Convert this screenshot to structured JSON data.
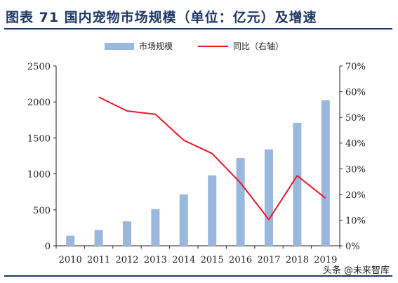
{
  "header": {
    "title": "图表 71  国内宠物市场规模（单位：亿元）及增速"
  },
  "footer": {
    "watermark": "头条 @未来智库"
  },
  "colors": {
    "bar": "#9ab7dd",
    "line": "#e8192c",
    "rule": "#1f3864"
  },
  "chart_data": {
    "type": "bar",
    "categories": [
      "2010",
      "2011",
      "2012",
      "2013",
      "2014",
      "2015",
      "2016",
      "2017",
      "2018",
      "2019"
    ],
    "series": [
      {
        "name": "市场规模",
        "type": "bar",
        "axis": "left",
        "values": [
          140,
          220,
          340,
          510,
          715,
          980,
          1220,
          1340,
          1710,
          2024
        ]
      },
      {
        "name": "同比（右轴）",
        "type": "line",
        "axis": "right",
        "unit": "%",
        "values": [
          null,
          57.9,
          52.5,
          51.2,
          41.1,
          35.9,
          24.5,
          10.2,
          27.3,
          18.5
        ]
      }
    ],
    "y_left": {
      "min": 0,
      "max": 2500,
      "step": 500,
      "ticks": [
        "0",
        "500",
        "1000",
        "1500",
        "2000",
        "2500"
      ]
    },
    "y_right": {
      "min": 0,
      "max": 70,
      "step": 10,
      "ticks": [
        "0%",
        "10%",
        "20%",
        "30%",
        "40%",
        "50%",
        "60%",
        "70%"
      ]
    },
    "grid": false,
    "legend": "top-center"
  }
}
